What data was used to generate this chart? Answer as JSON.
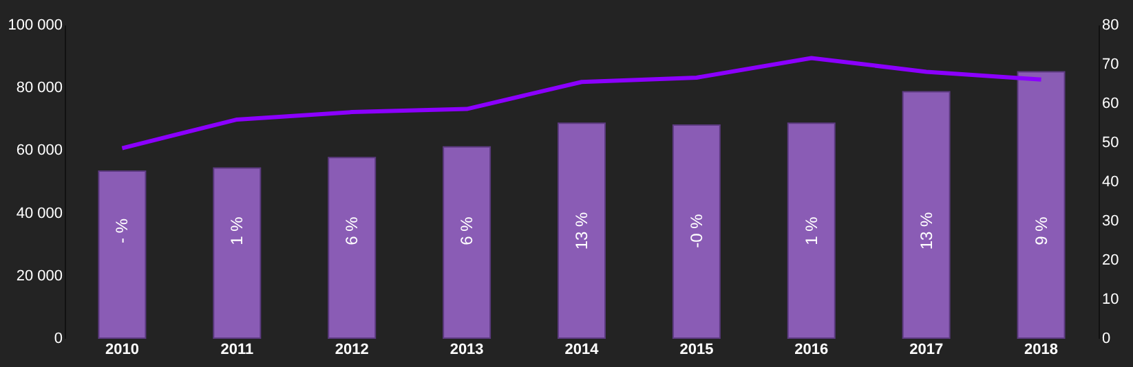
{
  "chart_data": {
    "type": "bar",
    "categories": [
      "2010",
      "2011",
      "2012",
      "2013",
      "2014",
      "2015",
      "2016",
      "2017",
      "2018"
    ],
    "series": [
      {
        "color": "#8a5cb5",
        "values": [
          53300,
          54300,
          57600,
          61000,
          68600,
          68000,
          68600,
          78600,
          85000
        ]
      },
      {
        "type": "line",
        "axis": "y2",
        "color": "#8b00ff",
        "values": [
          48.5,
          55.8,
          57.7,
          58.5,
          65.4,
          66.5,
          71.5,
          68,
          66
        ]
      }
    ],
    "ylim": [
      0,
      100000
    ],
    "yticks": [
      0,
      {
        "value": 20000,
        "label": "20 000"
      },
      {
        "value": 40000,
        "label": "40 000"
      },
      {
        "value": 60000,
        "label": "60 000"
      },
      {
        "value": 80000,
        "label": "80 000"
      },
      {
        "value": 100000,
        "label": "100 000"
      }
    ],
    "y2lim": [
      0,
      80
    ],
    "y2ticks": [
      0,
      10,
      20,
      30,
      40,
      50,
      60,
      70,
      80
    ],
    "annotations": [
      "- %",
      "1 %",
      "6 %",
      "6 %",
      "13 %",
      "-0 %",
      "1 %",
      "13 %",
      "9 %"
    ],
    "grid": false,
    "marker": "none",
    "line_style": "solid"
  }
}
